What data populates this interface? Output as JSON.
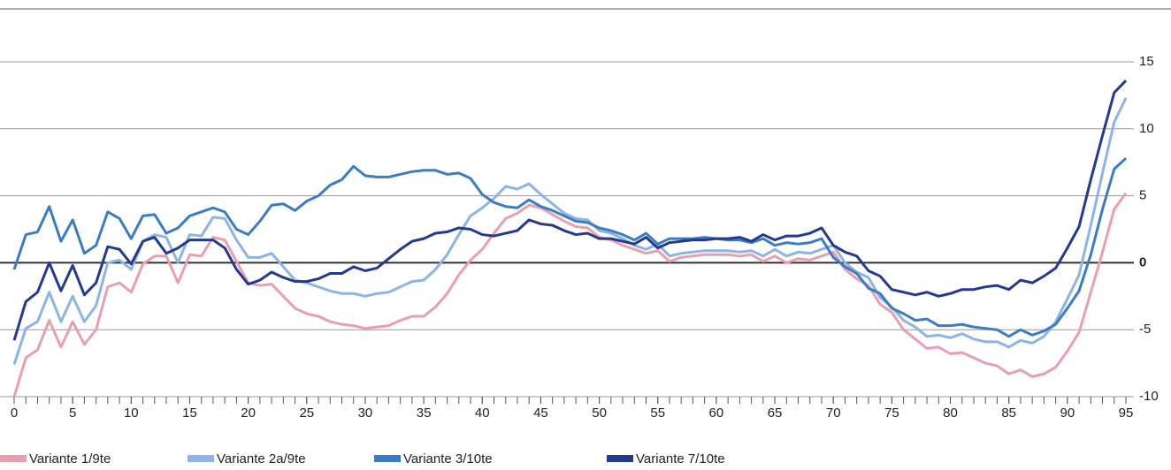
{
  "chart_data": {
    "type": "line",
    "x": [
      0,
      1,
      2,
      3,
      4,
      5,
      6,
      7,
      8,
      9,
      10,
      11,
      12,
      13,
      14,
      15,
      16,
      17,
      18,
      19,
      20,
      21,
      22,
      23,
      24,
      25,
      26,
      27,
      28,
      29,
      30,
      31,
      32,
      33,
      34,
      35,
      36,
      37,
      38,
      39,
      40,
      41,
      42,
      43,
      44,
      45,
      46,
      47,
      48,
      49,
      50,
      51,
      52,
      53,
      54,
      55,
      56,
      57,
      58,
      59,
      60,
      61,
      62,
      63,
      64,
      65,
      66,
      67,
      68,
      69,
      70,
      71,
      72,
      73,
      74,
      75,
      76,
      77,
      78,
      79,
      80,
      81,
      82,
      83,
      84,
      85,
      86,
      87,
      88,
      89,
      90,
      91,
      92,
      93,
      94,
      95
    ],
    "xlim": [
      0,
      95
    ],
    "xticks": [
      0,
      5,
      10,
      15,
      20,
      25,
      30,
      35,
      40,
      45,
      50,
      55,
      60,
      65,
      70,
      75,
      80,
      85,
      90,
      95
    ],
    "ylim": [
      -10,
      15
    ],
    "yticks": [
      -10,
      -5,
      0,
      5,
      10,
      15
    ],
    "grid": true,
    "series": [
      {
        "name": "Variante 1/9te",
        "color": "#e8a0b1",
        "values": [
          -10,
          -7.1,
          -6.5,
          -4.3,
          -6.3,
          -4.4,
          -6.1,
          -5,
          -1.8,
          -1.5,
          -2.2,
          -0.1,
          0.5,
          0.5,
          -1.5,
          0.6,
          0.5,
          1.9,
          1.7,
          0.1,
          -1.5,
          -1.7,
          -1.6,
          -2.5,
          -3.4,
          -3.8,
          -4,
          -4.4,
          -4.6,
          -4.7,
          -4.9,
          -4.8,
          -4.7,
          -4.3,
          -4,
          -4,
          -3.3,
          -2.3,
          -0.9,
          0.2,
          1,
          2.2,
          3.3,
          3.7,
          4.3,
          4.1,
          3.6,
          3.1,
          2.7,
          2.6,
          1.9,
          1.7,
          1.3,
          1,
          0.7,
          0.9,
          0.1,
          0.4,
          0.5,
          0.6,
          0.6,
          0.6,
          0.5,
          0.6,
          0.1,
          0.5,
          0,
          0.3,
          0.2,
          0.5,
          0.8,
          -0.5,
          -1.2,
          -1.7,
          -3.1,
          -3.7,
          -5,
          -5.7,
          -6.4,
          -6.3,
          -6.8,
          -6.7,
          -7.1,
          -7.5,
          -7.7,
          -8.3,
          -8,
          -8.5,
          -8.3,
          -7.8,
          -6.6,
          -5.2,
          -2.2,
          0.8,
          4,
          5.2
        ]
      },
      {
        "name": "Variante 2a/9te",
        "color": "#8db4e2",
        "values": [
          -7.6,
          -4.9,
          -4.4,
          -2.2,
          -4.4,
          -2.5,
          -4.4,
          -3.2,
          0,
          0.2,
          -0.5,
          1.6,
          2.1,
          1.9,
          0,
          2.1,
          2,
          3.4,
          3.3,
          1.7,
          0.4,
          0.4,
          0.7,
          -0.3,
          -1.3,
          -1.5,
          -1.8,
          -2.1,
          -2.3,
          -2.3,
          -2.5,
          -2.3,
          -2.2,
          -1.8,
          -1.4,
          -1.3,
          -0.5,
          0.6,
          2.1,
          3.5,
          4.1,
          4.8,
          5.7,
          5.5,
          5.9,
          5.1,
          4.4,
          3.7,
          3.3,
          3.2,
          2.4,
          2.2,
          1.8,
          1.3,
          1,
          1.4,
          0.5,
          0.7,
          0.8,
          0.9,
          0.9,
          0.9,
          0.8,
          0.9,
          0.5,
          1,
          0.5,
          0.8,
          0.7,
          1,
          1.3,
          0,
          -0.7,
          -1.1,
          -2.6,
          -3.3,
          -4.3,
          -4.8,
          -5.5,
          -5.4,
          -5.6,
          -5.3,
          -5.7,
          -5.9,
          -5.9,
          -6.3,
          -5.8,
          -6,
          -5.5,
          -4.4,
          -2.7,
          -0.9,
          2.8,
          6.7,
          10.5,
          12.3
        ]
      },
      {
        "name": "Variante 3/10te",
        "color": "#3d7cc0",
        "values": [
          -0.5,
          2.1,
          2.3,
          4.2,
          1.6,
          3.2,
          0.7,
          1.3,
          3.8,
          3.3,
          1.8,
          3.5,
          3.6,
          2.2,
          2.6,
          3.5,
          3.8,
          4.1,
          3.8,
          2.5,
          2.1,
          3.1,
          4.3,
          4.4,
          3.9,
          4.6,
          5,
          5.8,
          6.2,
          7.2,
          6.5,
          6.4,
          6.4,
          6.6,
          6.8,
          6.9,
          6.9,
          6.6,
          6.7,
          6.3,
          5.1,
          4.5,
          4.2,
          4.1,
          4.7,
          4.2,
          3.9,
          3.5,
          3.1,
          3,
          2.6,
          2.4,
          2.1,
          1.7,
          2.2,
          1.4,
          1.8,
          1.8,
          1.8,
          1.9,
          1.8,
          1.7,
          1.7,
          1.5,
          1.8,
          1.3,
          1.5,
          1.4,
          1.5,
          1.8,
          0.4,
          -0.3,
          -0.8,
          -1.9,
          -2.3,
          -3.4,
          -3.8,
          -4.3,
          -4.2,
          -4.7,
          -4.7,
          -4.6,
          -4.8,
          -4.9,
          -5,
          -5.5,
          -5,
          -5.4,
          -5.1,
          -4.6,
          -3.4,
          -2.1,
          0.6,
          4,
          7,
          7.8
        ]
      },
      {
        "name": "Variante 7/10te",
        "color": "#253a8c",
        "values": [
          -5.8,
          -2.9,
          -2.2,
          0,
          -2.1,
          -0.2,
          -2.4,
          -1.5,
          1.2,
          1,
          -0.1,
          1.6,
          1.9,
          0.7,
          1.1,
          1.7,
          1.7,
          1.7,
          1.1,
          -0.5,
          -1.6,
          -1.3,
          -0.7,
          -1.1,
          -1.4,
          -1.4,
          -1.2,
          -0.8,
          -0.8,
          -0.3,
          -0.6,
          -0.4,
          0.3,
          1,
          1.6,
          1.8,
          2.2,
          2.3,
          2.6,
          2.5,
          2.1,
          2,
          2.2,
          2.4,
          3.2,
          2.9,
          2.8,
          2.4,
          2.1,
          2.2,
          1.8,
          1.8,
          1.6,
          1.4,
          1.9,
          1.1,
          1.5,
          1.6,
          1.7,
          1.7,
          1.8,
          1.8,
          1.9,
          1.6,
          2.1,
          1.7,
          2,
          2,
          2.2,
          2.6,
          1.3,
          0.8,
          0.5,
          -0.6,
          -1,
          -2,
          -2.2,
          -2.4,
          -2.2,
          -2.5,
          -2.3,
          -2,
          -2,
          -1.8,
          -1.7,
          -2,
          -1.3,
          -1.5,
          -1,
          -0.4,
          1.1,
          2.7,
          6.2,
          9.5,
          12.7,
          13.6
        ]
      }
    ]
  }
}
